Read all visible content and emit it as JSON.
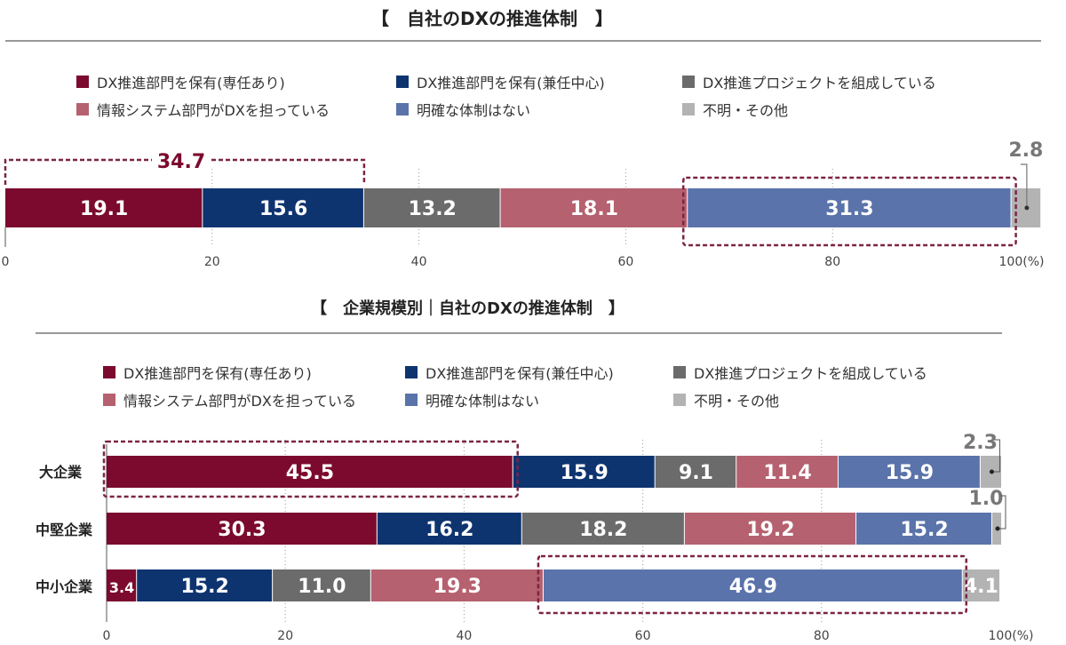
{
  "colors": {
    "dark_red": "#7b0a2e",
    "navy": "#0e3470",
    "gray": "#6b6b6b",
    "pink": "#b5616f",
    "blue": "#5a73aa",
    "light_gray": "#b3b3b3",
    "highlight": "#7b2446"
  },
  "chart_data": [
    {
      "type": "bar",
      "orientation": "horizontal",
      "stacked": true,
      "title": "【　自社のDXの推進体制　】",
      "legend": [
        "DX推進部門を保有(専任あり)",
        "DX推進部門を保有(兼任中心)",
        "DX推進プロジェクトを組成している",
        "情報システム部門がDXを担っている",
        "明確な体制はない",
        "不明・その他"
      ],
      "series": [
        {
          "name": "DX推進部門を保有(専任あり)",
          "values": [
            19.1
          ]
        },
        {
          "name": "DX推進部門を保有(兼任中心)",
          "values": [
            15.6
          ]
        },
        {
          "name": "DX推進プロジェクトを組成している",
          "values": [
            13.2
          ]
        },
        {
          "name": "情報システム部門がDXを担っている",
          "values": [
            18.1
          ]
        },
        {
          "name": "明確な体制はない",
          "values": [
            31.3
          ]
        },
        {
          "name": "不明・その他",
          "values": [
            2.8
          ]
        }
      ],
      "segment_labels": [
        "19.1",
        "15.6",
        "13.2",
        "18.1",
        "31.3",
        "2.8"
      ],
      "callout": "34.7",
      "xticks": [
        "0",
        "20",
        "40",
        "60",
        "80",
        "100(%)"
      ],
      "xlim": [
        0,
        100
      ]
    },
    {
      "type": "bar",
      "orientation": "horizontal",
      "stacked": true,
      "title": "【　企業規模別｜自社のDXの推進体制　】",
      "categories": [
        "大企業",
        "中堅企業",
        "中小企業"
      ],
      "legend": [
        "DX推進部門を保有(専任あり)",
        "DX推進部門を保有(兼任中心)",
        "DX推進プロジェクトを組成している",
        "情報システム部門がDXを担っている",
        "明確な体制はない",
        "不明・その他"
      ],
      "series": [
        {
          "name": "DX推進部門を保有(専任あり)",
          "values": [
            45.5,
            30.3,
            3.4
          ]
        },
        {
          "name": "DX推進部門を保有(兼任中心)",
          "values": [
            15.9,
            16.2,
            15.2
          ]
        },
        {
          "name": "DX推進プロジェクトを組成している",
          "values": [
            9.1,
            18.2,
            11.0
          ]
        },
        {
          "name": "情報システム部門がDXを担っている",
          "values": [
            11.4,
            19.2,
            19.3
          ]
        },
        {
          "name": "明確な体制はない",
          "values": [
            15.9,
            15.2,
            46.9
          ]
        },
        {
          "name": "不明・その他",
          "values": [
            2.3,
            1.0,
            4.1
          ]
        }
      ],
      "segment_labels": [
        [
          "45.5",
          "15.9",
          "9.1",
          "11.4",
          "15.9",
          "2.3"
        ],
        [
          "30.3",
          "16.2",
          "18.2",
          "19.2",
          "15.2",
          "1.0"
        ],
        [
          "3.4",
          "15.2",
          "11.0",
          "19.3",
          "46.9",
          "4.1"
        ]
      ],
      "xticks": [
        "0",
        "20",
        "40",
        "60",
        "80",
        "100(%)"
      ],
      "xlim": [
        0,
        100
      ]
    }
  ]
}
